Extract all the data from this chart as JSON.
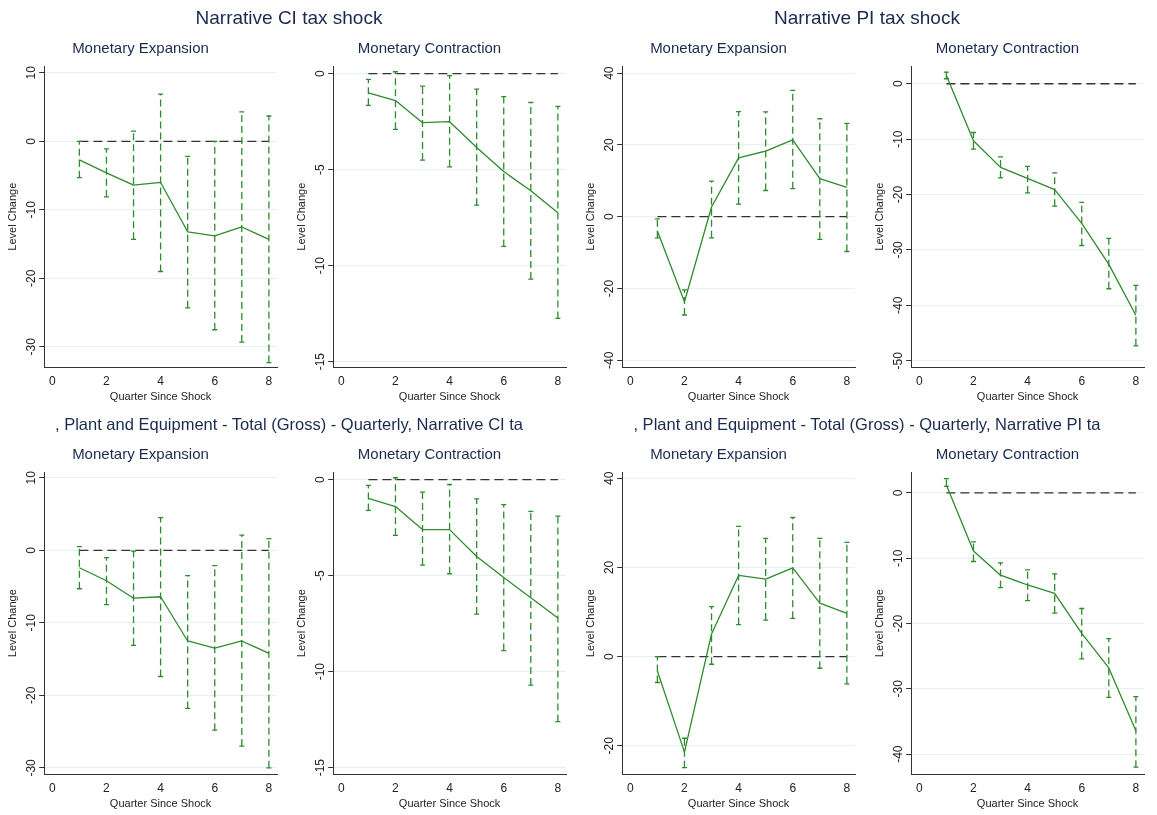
{
  "chart_data": [
    {
      "type": "line",
      "title": "Monetary Expansion",
      "annotations": [
        "Narrative CI tax shock"
      ],
      "xlabel": "Quarter Since Shock",
      "ylabel": "Level Change",
      "xlim": [
        -0.3,
        8.3
      ],
      "xticks": [
        0,
        2,
        4,
        6,
        8
      ],
      "ylim": [
        -33,
        11
      ],
      "yticks": [
        10,
        0,
        -10,
        -20,
        -30
      ],
      "grid": "y",
      "legend": false,
      "marker": "none",
      "line_style": "solid",
      "ref_lines": [
        {
          "axis": "y",
          "value": 0,
          "color": "#333333",
          "line_style": "dashed"
        }
      ],
      "x": [
        1,
        2,
        3,
        4,
        5,
        6,
        7,
        8
      ],
      "series": [
        {
          "color": "#2e8b2e",
          "values": [
            -2.7,
            -4.6,
            -6.4,
            -6.0,
            -13.2,
            -13.8,
            -12.5,
            -14.3
          ],
          "errors": [
            [
              -5.3,
              0
            ],
            [
              -8.1,
              -1.1
            ],
            [
              -14.3,
              1.5
            ],
            [
              -19.0,
              6.9
            ],
            [
              -24.3,
              -2.2
            ],
            [
              -27.5,
              0
            ],
            [
              -29.3,
              4.3
            ],
            [
              -32.3,
              3.7
            ]
          ]
        }
      ]
    },
    {
      "type": "line",
      "title": "Monetary Contraction",
      "xlabel": "Quarter Since Shock",
      "ylabel": "Level Change",
      "xlim": [
        -0.3,
        8.3
      ],
      "xticks": [
        0,
        2,
        4,
        6,
        8
      ],
      "ylim": [
        -15.3,
        0.4
      ],
      "yticks": [
        0,
        -5,
        -10,
        -15
      ],
      "grid": "y",
      "legend": false,
      "marker": "none",
      "line_style": "solid",
      "ref_lines": [
        {
          "axis": "y",
          "value": 0,
          "color": "#333333",
          "line_style": "dashed"
        }
      ],
      "x": [
        1,
        2,
        3,
        4,
        5,
        6,
        7,
        8
      ],
      "series": [
        {
          "color": "#2e8b2e",
          "values": [
            -1.0,
            -1.4,
            -2.55,
            -2.5,
            -3.85,
            -5.1,
            -6.1,
            -7.25
          ],
          "errors": [
            [
              -1.65,
              -0.3
            ],
            [
              -2.9,
              0.1
            ],
            [
              -4.5,
              -0.65
            ],
            [
              -4.85,
              -0.1
            ],
            [
              -6.85,
              -0.8
            ],
            [
              -9.0,
              -1.2
            ],
            [
              -10.7,
              -1.5
            ],
            [
              -12.75,
              -1.7
            ]
          ]
        }
      ]
    },
    {
      "type": "line",
      "title": "Monetary Expansion",
      "annotations": [
        "Narrative PI tax shock"
      ],
      "xlabel": "Quarter Since Shock",
      "ylabel": "Level Change",
      "xlim": [
        -0.3,
        8.3
      ],
      "xticks": [
        0,
        2,
        4,
        6,
        8
      ],
      "ylim": [
        -42,
        42
      ],
      "yticks": [
        40,
        20,
        0,
        -20,
        -40
      ],
      "grid": "y",
      "legend": false,
      "marker": "none",
      "line_style": "solid",
      "ref_lines": [
        {
          "axis": "y",
          "value": 0,
          "color": "#333333",
          "line_style": "dashed"
        }
      ],
      "x": [
        1,
        2,
        3,
        4,
        5,
        6,
        7,
        8
      ],
      "series": [
        {
          "color": "#2e8b2e",
          "values": [
            -4.0,
            -23.7,
            2.7,
            16.4,
            18.3,
            21.4,
            10.6,
            8.2
          ],
          "errors": [
            [
              -5.9,
              -0.6
            ],
            [
              -27.4,
              -20.4
            ],
            [
              -5.9,
              9.9
            ],
            [
              3.5,
              29.3
            ],
            [
              7.3,
              29.2
            ],
            [
              7.8,
              35.2
            ],
            [
              -6.3,
              27.3
            ],
            [
              -9.7,
              26.0
            ]
          ]
        }
      ]
    },
    {
      "type": "line",
      "title": "Monetary Contraction",
      "xlabel": "Quarter Since Shock",
      "ylabel": "Level Change",
      "xlim": [
        -0.3,
        8.3
      ],
      "xticks": [
        0,
        2,
        4,
        6,
        8
      ],
      "ylim": [
        -51.2,
        3.2
      ],
      "yticks": [
        0,
        -10,
        -20,
        -30,
        -40,
        -50
      ],
      "grid": "y",
      "legend": false,
      "marker": "none",
      "line_style": "solid",
      "ref_lines": [
        {
          "axis": "y",
          "value": 0,
          "color": "#333333",
          "line_style": "dashed"
        }
      ],
      "x": [
        1,
        2,
        3,
        4,
        5,
        6,
        7,
        8
      ],
      "series": [
        {
          "color": "#2e8b2e",
          "values": [
            1.5,
            -10.3,
            -15.1,
            -17.1,
            -19.1,
            -25.2,
            -32.6,
            -41.8
          ],
          "errors": [
            [
              0.9,
              2.1
            ],
            [
              -11.8,
              -8.8
            ],
            [
              -17.0,
              -13.2
            ],
            [
              -19.7,
              -14.9
            ],
            [
              -22.1,
              -16.1
            ],
            [
              -29.2,
              -21.4
            ],
            [
              -37.0,
              -27.9
            ],
            [
              -47.3,
              -36.4
            ]
          ]
        }
      ]
    },
    {
      "type": "line",
      "title": "Monetary Expansion",
      "annotations": [
        ", Plant and Equipment - Total (Gross) - Quarterly, Narrative CI ta"
      ],
      "xlabel": "Quarter Since Shock",
      "ylabel": "Level Change",
      "xlim": [
        -0.3,
        8.3
      ],
      "xticks": [
        0,
        2,
        4,
        6,
        8
      ],
      "ylim": [
        -30.9,
        10.8
      ],
      "yticks": [
        10,
        0,
        -10,
        -20,
        -30
      ],
      "grid": "y",
      "legend": false,
      "marker": "none",
      "line_style": "solid",
      "ref_lines": [
        {
          "axis": "y",
          "value": 0,
          "color": "#333333",
          "line_style": "dashed"
        }
      ],
      "x": [
        1,
        2,
        3,
        4,
        5,
        6,
        7,
        8
      ],
      "series": [
        {
          "color": "#2e8b2e",
          "values": [
            -2.4,
            -4.2,
            -6.6,
            -6.4,
            -12.5,
            -13.5,
            -12.5,
            -14.2
          ],
          "errors": [
            [
              -5.3,
              0.5
            ],
            [
              -7.5,
              -1.0
            ],
            [
              -13.1,
              -0.1
            ],
            [
              -17.4,
              4.5
            ],
            [
              -21.8,
              -3.5
            ],
            [
              -24.8,
              -2.1
            ],
            [
              -27.0,
              2.1
            ],
            [
              -30.0,
              1.6
            ]
          ]
        }
      ]
    },
    {
      "type": "line",
      "title": "Monetary Contraction",
      "xlabel": "Quarter Since Shock",
      "ylabel": "Level Change",
      "xlim": [
        -0.3,
        8.3
      ],
      "xticks": [
        0,
        2,
        4,
        6,
        8
      ],
      "ylim": [
        -15.35,
        0.4
      ],
      "yticks": [
        0,
        -5,
        -10,
        -15
      ],
      "grid": "y",
      "legend": false,
      "marker": "none",
      "line_style": "solid",
      "ref_lines": [
        {
          "axis": "y",
          "value": 0,
          "color": "#333333",
          "line_style": "dashed"
        }
      ],
      "x": [
        1,
        2,
        3,
        4,
        5,
        6,
        7,
        8
      ],
      "series": [
        {
          "color": "#2e8b2e",
          "values": [
            -0.97,
            -1.4,
            -2.6,
            -2.6,
            -4.0,
            -5.1,
            -6.15,
            -7.2
          ],
          "errors": [
            [
              -1.6,
              -0.3
            ],
            [
              -2.9,
              0.1
            ],
            [
              -4.45,
              -0.65
            ],
            [
              -4.9,
              -0.25
            ],
            [
              -7.0,
              -1.0
            ],
            [
              -8.9,
              -1.3
            ],
            [
              -10.7,
              -1.65
            ],
            [
              -12.6,
              -1.9
            ]
          ]
        }
      ]
    },
    {
      "type": "line",
      "title": "Monetary Expansion",
      "annotations": [
        ", Plant and Equipment - Total (Gross) - Quarterly, Narrative PI ta"
      ],
      "xlabel": "Quarter Since Shock",
      "ylabel": "Level Change",
      "xlim": [
        -0.3,
        8.3
      ],
      "xticks": [
        0,
        2,
        4,
        6,
        8
      ],
      "ylim": [
        -26.4,
        41.4
      ],
      "yticks": [
        40,
        20,
        0,
        -20
      ],
      "grid": "y",
      "legend": false,
      "marker": "none",
      "line_style": "solid",
      "ref_lines": [
        {
          "axis": "y",
          "value": 0,
          "color": "#333333",
          "line_style": "dashed"
        }
      ],
      "x": [
        1,
        2,
        3,
        4,
        5,
        6,
        7,
        8
      ],
      "series": [
        {
          "color": "#2e8b2e",
          "values": [
            -3.2,
            -21.4,
            5.1,
            18.2,
            17.4,
            19.9,
            12.0,
            9.7
          ],
          "errors": [
            [
              -5.8,
              0
            ],
            [
              -24.9,
              -18.3
            ],
            [
              -1.7,
              11.2
            ],
            [
              7.2,
              29.2
            ],
            [
              8.2,
              26.5
            ],
            [
              8.6,
              31.2
            ],
            [
              -2.6,
              26.5
            ],
            [
              -6.1,
              25.6
            ]
          ]
        }
      ]
    },
    {
      "type": "line",
      "title": "Monetary Contraction",
      "xlabel": "Quarter Since Shock",
      "ylabel": "Level Change",
      "xlim": [
        -0.3,
        8.3
      ],
      "xticks": [
        0,
        2,
        4,
        6,
        8
      ],
      "ylim": [
        -43.1,
        3.2
      ],
      "yticks": [
        0,
        -10,
        -20,
        -30,
        -40
      ],
      "grid": "y",
      "legend": false,
      "marker": "none",
      "line_style": "solid",
      "ref_lines": [
        {
          "axis": "y",
          "value": 0,
          "color": "#333333",
          "line_style": "dashed"
        }
      ],
      "x": [
        1,
        2,
        3,
        4,
        5,
        6,
        7,
        8
      ],
      "series": [
        {
          "color": "#2e8b2e",
          "values": [
            1.2,
            -8.9,
            -12.6,
            -14.1,
            -15.4,
            -21.5,
            -26.8,
            -36.4
          ],
          "errors": [
            [
              1.0,
              2.2
            ],
            [
              -10.5,
              -7.5
            ],
            [
              -14.5,
              -10.7
            ],
            [
              -16.5,
              -11.8
            ],
            [
              -18.4,
              -12.4
            ],
            [
              -25.4,
              -17.7
            ],
            [
              -31.3,
              -22.3
            ],
            [
              -42.0,
              -31.2
            ]
          ]
        }
      ]
    }
  ]
}
